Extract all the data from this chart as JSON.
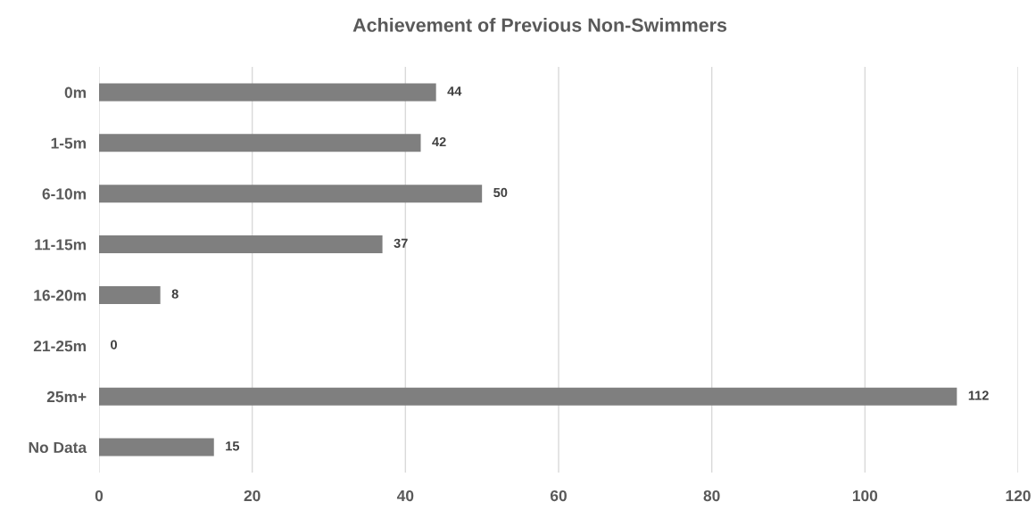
{
  "chart_data": {
    "type": "bar",
    "orientation": "horizontal",
    "title": "Achievement of Previous Non-Swimmers",
    "categories": [
      "0m",
      "1-5m",
      "6-10m",
      "11-15m",
      "16-20m",
      "21-25m",
      "25m+",
      "No Data"
    ],
    "values": [
      44,
      42,
      50,
      37,
      8,
      0,
      112,
      15
    ],
    "color": "#7f7f7f",
    "xlim": [
      0,
      120
    ],
    "xticks": [
      0,
      20,
      40,
      60,
      80,
      100,
      120
    ],
    "grid": "x",
    "data_labels": true
  }
}
